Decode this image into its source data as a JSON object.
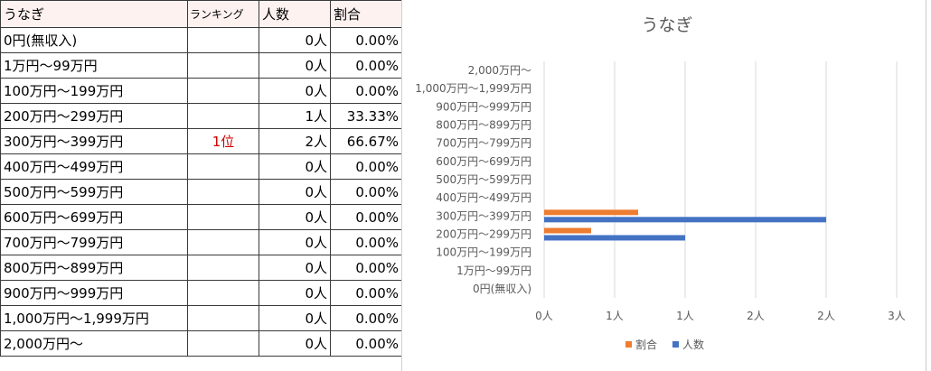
{
  "table": {
    "headers": [
      "うなぎ",
      "ランキング",
      "人数",
      "割合"
    ],
    "rows": [
      {
        "label": "0円(無収入)",
        "rank": "",
        "count": "0人",
        "pct": "0.00%"
      },
      {
        "label": "1万円～99万円",
        "rank": "",
        "count": "0人",
        "pct": "0.00%"
      },
      {
        "label": "100万円～199万円",
        "rank": "",
        "count": "0人",
        "pct": "0.00%"
      },
      {
        "label": "200万円～299万円",
        "rank": "",
        "count": "1人",
        "pct": "33.33%"
      },
      {
        "label": "300万円～399万円",
        "rank": "1位",
        "count": "2人",
        "pct": "66.67%"
      },
      {
        "label": "400万円～499万円",
        "rank": "",
        "count": "0人",
        "pct": "0.00%"
      },
      {
        "label": "500万円～599万円",
        "rank": "",
        "count": "0人",
        "pct": "0.00%"
      },
      {
        "label": "600万円～699万円",
        "rank": "",
        "count": "0人",
        "pct": "0.00%"
      },
      {
        "label": "700万円～799万円",
        "rank": "",
        "count": "0人",
        "pct": "0.00%"
      },
      {
        "label": "800万円～899万円",
        "rank": "",
        "count": "0人",
        "pct": "0.00%"
      },
      {
        "label": "900万円～999万円",
        "rank": "",
        "count": "0人",
        "pct": "0.00%"
      },
      {
        "label": "1,000万円～1,999万円",
        "rank": "",
        "count": "0人",
        "pct": "0.00%"
      },
      {
        "label": "2,000万円～",
        "rank": "",
        "count": "0人",
        "pct": "0.00%"
      }
    ],
    "rank_color": "#d00000"
  },
  "chart_data": {
    "type": "bar",
    "orientation": "horizontal",
    "title": "うなぎ",
    "categories": [
      "0円(無収入)",
      "1万円～99万円",
      "100万円～199万円",
      "200万円～299万円",
      "300万円～399万円",
      "400万円～499万円",
      "500万円～599万円",
      "600万円～699万円",
      "700万円～799万円",
      "800万円～899万円",
      "900万円～999万円",
      "1,000万円～1,999万円",
      "2,000万円～"
    ],
    "series": [
      {
        "name": "人数",
        "color": "#4472c4",
        "values": [
          0,
          0,
          0,
          1,
          2,
          0,
          0,
          0,
          0,
          0,
          0,
          0,
          0
        ]
      },
      {
        "name": "割合",
        "color": "#ed7d31",
        "values": [
          0,
          0,
          0,
          0.3333,
          0.6667,
          0,
          0,
          0,
          0,
          0,
          0,
          0,
          0
        ]
      }
    ],
    "xlim": [
      0,
      2.5
    ],
    "xticks": [
      "0人",
      "1人",
      "1人",
      "2人",
      "2人",
      "3人"
    ],
    "grid": true,
    "legend": "bottom",
    "legend_order": [
      "割合",
      "人数"
    ]
  }
}
